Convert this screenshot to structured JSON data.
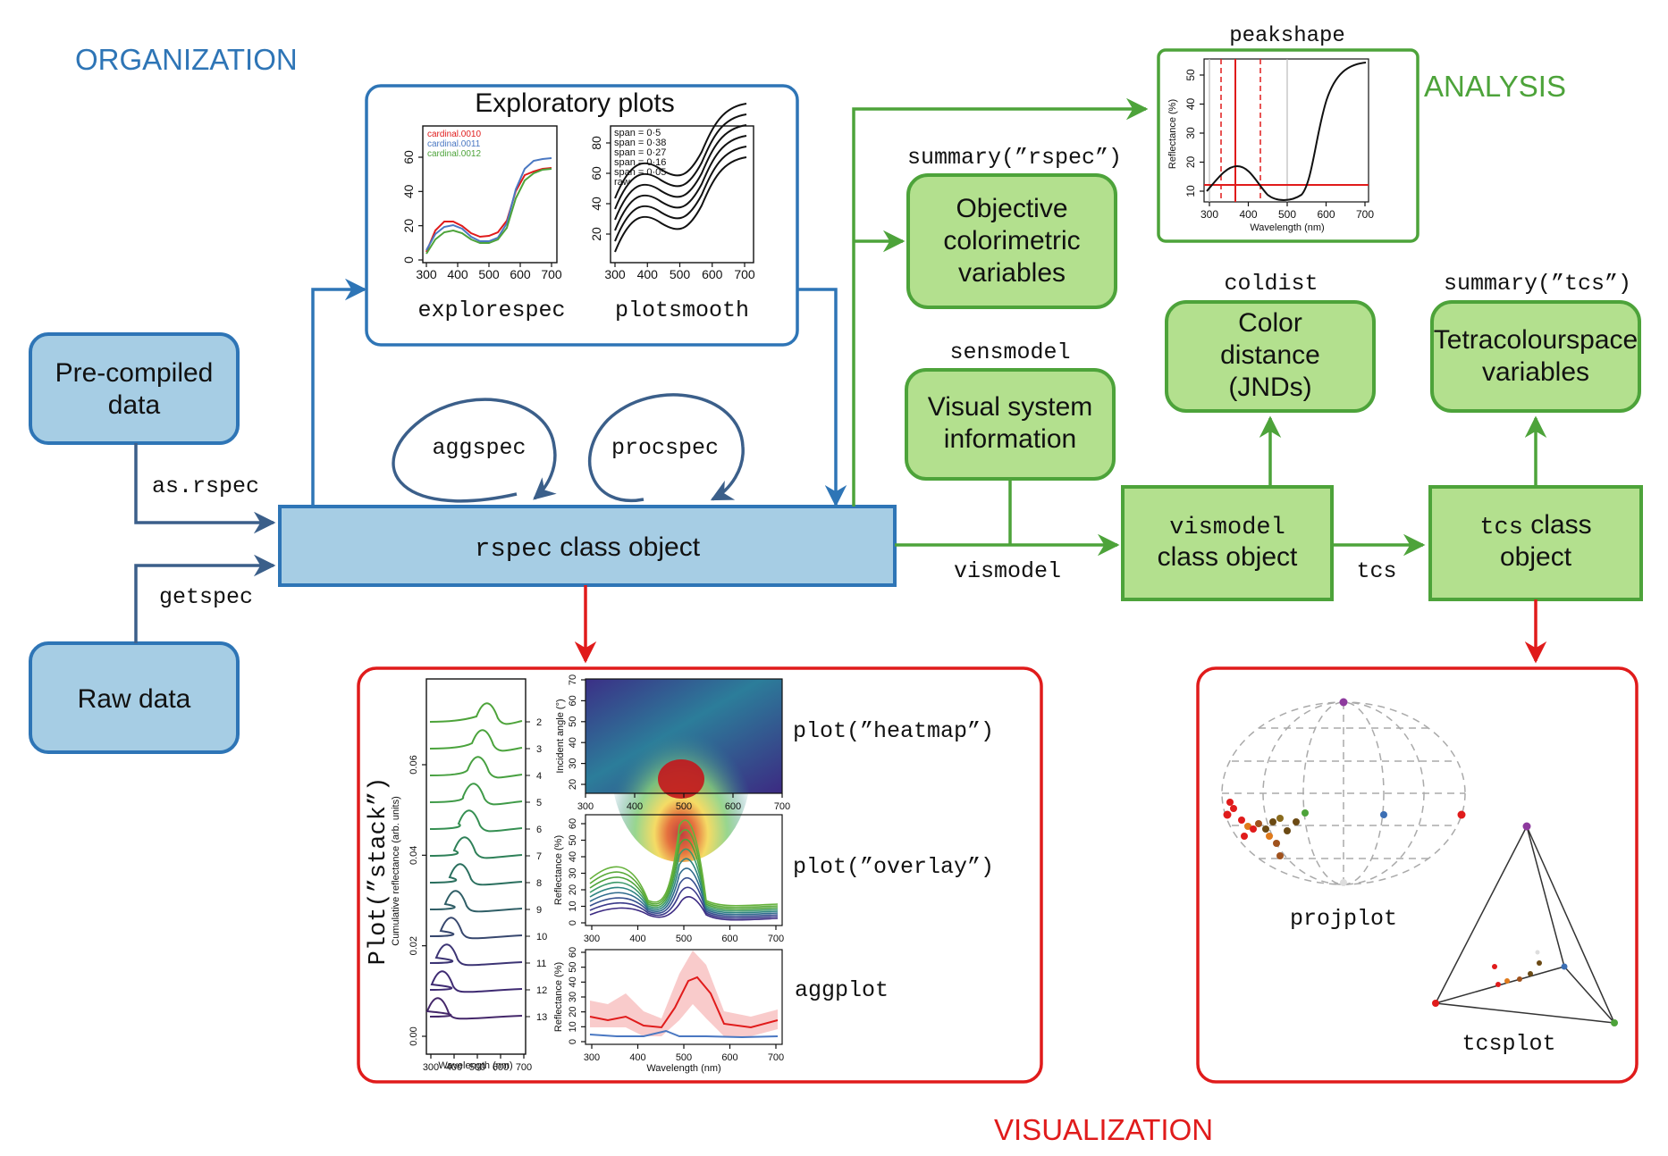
{
  "sections": {
    "organization": "ORGANIZATION",
    "analysis": "ANALYSIS",
    "visualization": "VISUALIZATION"
  },
  "colors": {
    "blue_stroke": "#2e75b6",
    "blue_fill": "#a6cde4",
    "green_stroke": "#4da33a",
    "green_fill": "#b3e08e",
    "red_stroke": "#e01b1b"
  },
  "sources": {
    "precompiled": [
      "Pre-compiled",
      "data"
    ],
    "raw": "Raw data",
    "as_rspec": "as.rspec",
    "getspec": "getspec"
  },
  "rspec": {
    "code": "rspec",
    "label": " class object",
    "loop1": "aggspec",
    "loop2": "procspec"
  },
  "exploratory": {
    "title": "Exploratory plots",
    "fn1": "explorespec",
    "fn2": "plotsmooth",
    "legend1": [
      "cardinal.0010",
      "cardinal.0011",
      "cardinal.0012"
    ],
    "legend2": [
      "span = 0·5",
      "span = 0·38",
      "span = 0·27",
      "span = 0·16",
      "span = 0·05",
      "raw"
    ],
    "xticks": [
      "300",
      "400",
      "500",
      "600",
      "700"
    ],
    "yticks1": [
      "0",
      "20",
      "40",
      "60"
    ],
    "yticks2": [
      "20",
      "40",
      "60",
      "80"
    ]
  },
  "analysis": {
    "summary_rspec_fn": "summary(”rspec”)",
    "objective": [
      "Objective",
      "colorimetric",
      "variables"
    ],
    "sensmodel_fn": "sensmodel",
    "visual": [
      "Visual system",
      "information"
    ],
    "coldist_fn": "coldist",
    "color_distance": [
      "Color",
      "distance",
      "(JNDs)"
    ],
    "summary_tcs_fn": "summary(”tcs”)",
    "tetra": [
      "Tetracolourspace",
      "variables"
    ],
    "vismodel_edge": "vismodel",
    "vismodel_code": "vismodel",
    "vismodel_label": "class object",
    "tcs_edge": "tcs",
    "tcs_code": "tcs",
    "tcs_label1": " class",
    "tcs_label2": "object"
  },
  "peakshape": {
    "title": "peakshape",
    "xlabel": "Wavelength (nm)",
    "ylabel": "Reflectance (%)",
    "xticks": [
      "300",
      "400",
      "500",
      "600",
      "700"
    ],
    "yticks": [
      "10",
      "20",
      "30",
      "40",
      "50"
    ]
  },
  "visualization": {
    "stack_label": "Plot(”stack”)",
    "stack_ylabel": "Cumulative reflectance (arb. units)",
    "stack_yticks": [
      "0.00",
      "0.02",
      "0.04",
      "0.06"
    ],
    "stack_index": [
      "2",
      "3",
      "4",
      "5",
      "6",
      "7",
      "8",
      "9",
      "10",
      "11",
      "12",
      "13"
    ],
    "stack_xticks": [
      "300",
      "400",
      "500",
      "600",
      "700"
    ],
    "stack_xlabel": "Wavelength (nm)",
    "heatmap_fn": "plot(”heatmap”)",
    "heatmap_ylabel": "Incident angle (°)",
    "heatmap_yticks": [
      "20",
      "30",
      "40",
      "50",
      "60",
      "70"
    ],
    "heatmap_xticks": [
      "300",
      "400",
      "500",
      "600",
      "700"
    ],
    "overlay_fn": "plot(”overlay”)",
    "overlay_ylabel": "Reflectance (%)",
    "overlay_yticks": [
      "0",
      "10",
      "20",
      "30",
      "40",
      "50",
      "60"
    ],
    "overlay_xticks": [
      "300",
      "400",
      "500",
      "600",
      "700"
    ],
    "aggplot_fn": "aggplot",
    "agg_ylabel": "Reflectance (%)",
    "agg_yticks": [
      "0",
      "10",
      "20",
      "30",
      "40",
      "50",
      "60"
    ],
    "agg_xticks": [
      "300",
      "400",
      "500",
      "600",
      "700"
    ],
    "agg_xlabel": "Wavelength (nm)",
    "projplot_fn": "projplot",
    "tcsplot_fn": "tcsplot"
  }
}
